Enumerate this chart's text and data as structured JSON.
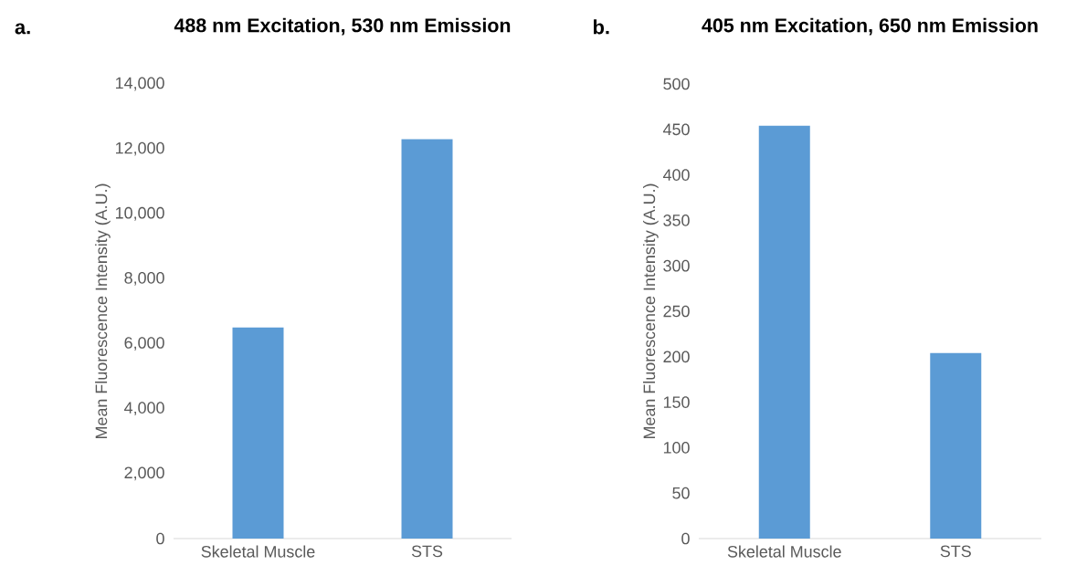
{
  "chart_data": [
    {
      "type": "bar",
      "title": "488 nm Excitation, 530 nm Emission",
      "ylabel": "Mean Fluorescence Intensity (A.U.)",
      "annotations": [
        "a."
      ],
      "categories": [
        "Skeletal Muscle",
        "STS"
      ],
      "values": [
        6500,
        12300
      ],
      "color": "#5b9bd5",
      "ylim": [
        0,
        14000
      ],
      "yticks": [
        0,
        {
          "value": 2000,
          "label": "2,000"
        },
        {
          "value": 4000,
          "label": "4,000"
        },
        {
          "value": 6000,
          "label": "6,000"
        },
        {
          "value": 8000,
          "label": "8,000"
        },
        {
          "value": 10000,
          "label": "10,000"
        },
        {
          "value": 12000,
          "label": "12,000"
        },
        {
          "value": 14000,
          "label": "14,000"
        }
      ]
    },
    {
      "type": "bar",
      "title": "405 nm Excitation, 650 nm Emission",
      "ylabel": "Mean Fluorescence Intensity (A.U.)",
      "annotations": [
        "b."
      ],
      "categories": [
        "Skeletal Muscle",
        "STS"
      ],
      "values": [
        454,
        204
      ],
      "color": "#5b9bd5",
      "ylim": [
        0,
        500
      ],
      "yticks": [
        0,
        50,
        100,
        150,
        200,
        250,
        300,
        350,
        400,
        450,
        500
      ]
    }
  ]
}
